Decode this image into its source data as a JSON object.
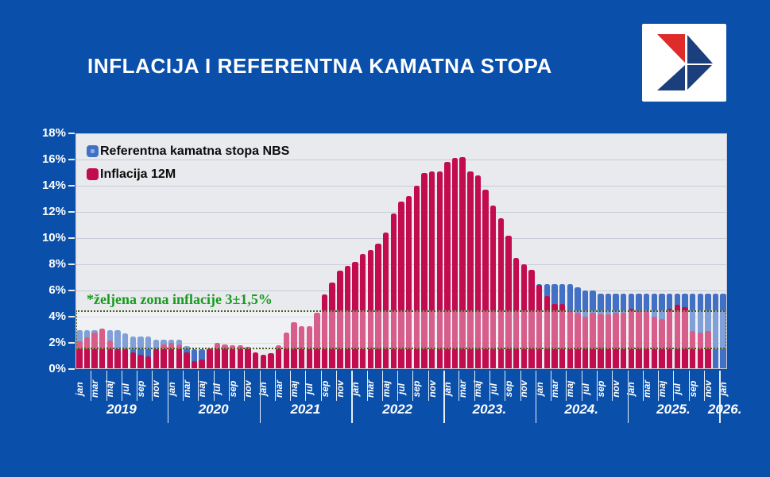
{
  "header": {
    "title": "INFLACIJA I REFERENTNA KAMATNA STOPA"
  },
  "logo": {
    "description": "arrow-logo",
    "colors": {
      "background": "#FFFFFF",
      "red": "#E02B2B",
      "navy": "#1B3E7C"
    }
  },
  "colors": {
    "page_background": "#0A50AB",
    "plot_background": "#E9EAEE",
    "gridline": "#C9CCD9",
    "rate_bar": "#4170C4",
    "inflation_bar": "#C30C4E",
    "band_fill": "rgba(255,255,255,0.34)",
    "band_border_green": "#46601A",
    "band_text_green": "#189A1E",
    "axis_text": "#FFFFFF"
  },
  "chart_data": {
    "type": "bar",
    "title": "INFLACIJA I REFERENTNA KAMATNA STOPA",
    "ylim": [
      0,
      18
    ],
    "ytick_step": 2,
    "ytick_labels": [
      "0%",
      "2%",
      "4%",
      "6%",
      "8%",
      "10%",
      "12%",
      "14%",
      "16%",
      "18%"
    ],
    "grid": "horizontal",
    "legend_position": "top-left",
    "x_label_every": 2,
    "x_year_labels": [
      "2019",
      "2020",
      "2021",
      "2022",
      "2023.",
      "2024.",
      "2025.",
      "2026."
    ],
    "annotation_band": {
      "from": 1.5,
      "to": 4.5,
      "label": "*željena zona inflacije 3±1,5%"
    },
    "categories": [
      "jan 2019",
      "feb 2019",
      "mar 2019",
      "apr 2019",
      "maj 2019",
      "jun 2019",
      "jul 2019",
      "avg 2019",
      "sep 2019",
      "okt 2019",
      "nov 2019",
      "dec 2019",
      "jan 2020",
      "feb 2020",
      "mar 2020",
      "apr 2020",
      "maj 2020",
      "jun 2020",
      "jul 2020",
      "avg 2020",
      "sep 2020",
      "okt 2020",
      "nov 2020",
      "dec 2020",
      "jan 2021",
      "feb 2021",
      "mar 2021",
      "apr 2021",
      "maj 2021",
      "jun 2021",
      "jul 2021",
      "avg 2021",
      "sep 2021",
      "okt 2021",
      "nov 2021",
      "dec 2021",
      "jan 2022",
      "feb 2022",
      "mar 2022",
      "apr 2022",
      "maj 2022",
      "jun 2022",
      "jul 2022",
      "avg 2022",
      "sep 2022",
      "okt 2022",
      "nov 2022",
      "dec 2022",
      "jan 2023",
      "feb 2023",
      "mar 2023",
      "apr 2023",
      "maj 2023",
      "jun 2023",
      "jul 2023",
      "avg 2023",
      "sep 2023",
      "okt 2023",
      "nov 2023",
      "dec 2023",
      "jan 2024",
      "feb 2024",
      "mar 2024",
      "apr 2024",
      "maj 2024",
      "jun 2024",
      "jul 2024",
      "avg 2024",
      "sep 2024",
      "okt 2024",
      "nov 2024",
      "dec 2024",
      "jan 2025",
      "feb 2025",
      "mar 2025",
      "apr 2025",
      "maj 2025",
      "jun 2025",
      "jul 2025",
      "avg 2025",
      "sep 2025",
      "okt 2025",
      "nov 2025",
      "dec 2025",
      "jan 2026"
    ],
    "series": [
      {
        "name": "Referentna kamatna stopa NBS",
        "color": "#4170C4",
        "values": [
          3.0,
          3.0,
          3.0,
          3.0,
          3.0,
          3.0,
          2.75,
          2.5,
          2.5,
          2.5,
          2.25,
          2.25,
          2.25,
          2.25,
          1.75,
          1.5,
          1.5,
          1.25,
          1.25,
          1.25,
          1.25,
          1.25,
          1.25,
          1.0,
          1.0,
          1.0,
          1.0,
          1.0,
          1.0,
          1.0,
          1.0,
          1.0,
          1.0,
          1.0,
          1.0,
          1.0,
          1.0,
          1.0,
          1.0,
          1.5,
          2.0,
          2.5,
          2.75,
          3.0,
          3.5,
          4.0,
          4.5,
          5.0,
          5.25,
          5.5,
          5.75,
          6.0,
          6.0,
          6.25,
          6.5,
          6.5,
          6.5,
          6.5,
          6.5,
          6.5,
          6.5,
          6.5,
          6.5,
          6.5,
          6.5,
          6.25,
          6.0,
          6.0,
          5.75,
          5.75,
          5.75,
          5.75,
          5.75,
          5.75,
          5.75,
          5.75,
          5.75,
          5.75,
          5.75,
          5.75,
          5.75,
          5.75,
          5.75,
          5.75,
          5.75
        ]
      },
      {
        "name": "Inflacija 12M",
        "color": "#C30C4E",
        "values": [
          2.1,
          2.4,
          2.8,
          3.1,
          2.2,
          1.5,
          1.6,
          1.3,
          1.1,
          1.0,
          1.5,
          1.9,
          2.0,
          1.9,
          1.3,
          0.6,
          0.7,
          1.6,
          2.0,
          1.9,
          1.8,
          1.8,
          1.7,
          1.3,
          1.1,
          1.2,
          1.8,
          2.8,
          3.6,
          3.3,
          3.3,
          4.3,
          5.7,
          6.6,
          7.5,
          7.9,
          8.2,
          8.8,
          9.1,
          9.6,
          10.4,
          11.9,
          12.8,
          13.2,
          14.0,
          15.0,
          15.1,
          15.1,
          15.8,
          16.1,
          16.2,
          15.1,
          14.8,
          13.7,
          12.5,
          11.5,
          10.2,
          8.5,
          8.0,
          7.6,
          6.4,
          5.6,
          5.0,
          5.0,
          4.5,
          4.3,
          4.0,
          4.3,
          4.2,
          4.2,
          4.3,
          4.3,
          4.6,
          4.5,
          4.4,
          4.0,
          3.8,
          4.6,
          4.9,
          4.7,
          2.9,
          2.8,
          2.9,
          null,
          null
        ]
      }
    ]
  }
}
